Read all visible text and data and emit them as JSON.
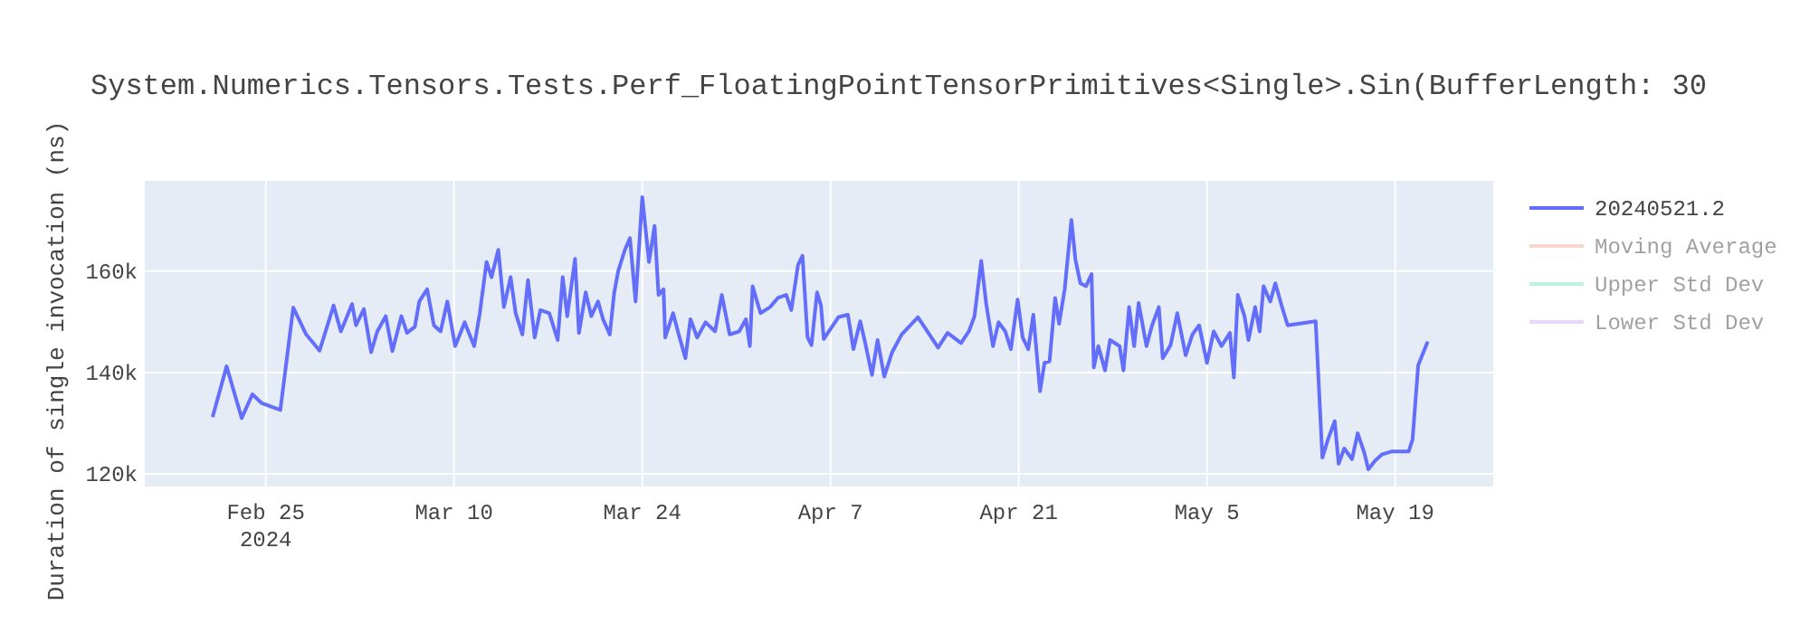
{
  "chart_data": {
    "type": "line",
    "title": "System.Numerics.Tensors.Tests.Perf_FloatingPointTensorPrimitives<Single>.Sin(BufferLength: 30",
    "ylabel": "Duration of single invocation (ns)",
    "xlim": [
      "2024-02-16",
      "2024-05-26T07:00"
    ],
    "xticks": [
      {
        "value": "2024-02-25",
        "label": "Feb 25\n2024"
      },
      {
        "value": "2024-03-10",
        "label": "Mar 10"
      },
      {
        "value": "2024-03-24",
        "label": "Mar 24"
      },
      {
        "value": "2024-04-07",
        "label": "Apr 7"
      },
      {
        "value": "2024-04-21",
        "label": "Apr 21"
      },
      {
        "value": "2024-05-05",
        "label": "May 5"
      },
      {
        "value": "2024-05-19",
        "label": "May 19"
      }
    ],
    "ylim": [
      117500,
      177800
    ],
    "yticks": [
      {
        "value": 120000,
        "label": "120k"
      },
      {
        "value": 140000,
        "label": "140k"
      },
      {
        "value": 160000,
        "label": "160k"
      }
    ],
    "grid": true,
    "legend": "right",
    "marker": "none",
    "line_style": "solid",
    "series": [
      {
        "name": "20240521.2",
        "color": "#636efa",
        "x": [
          "2024-02-21T01:00",
          "2024-02-22T02:00",
          "2024-02-23T05:00",
          "2024-02-24T00:00",
          "2024-02-24T16:00",
          "2024-02-26T02:00",
          "2024-02-27T01:00",
          "2024-02-28T00:00",
          "2024-02-29T00:00",
          "2024-03-01T01:00",
          "2024-03-01T14:00",
          "2024-03-02T10:00",
          "2024-03-02T17:00",
          "2024-03-03T07:00",
          "2024-03-03T20:00",
          "2024-03-04T07:00",
          "2024-03-04T22:00",
          "2024-03-05T10:00",
          "2024-03-06T02:00",
          "2024-03-06T12:00",
          "2024-03-07T02:00",
          "2024-03-07T10:00",
          "2024-03-08T00:00",
          "2024-03-08T12:00",
          "2024-03-09T00:00",
          "2024-03-09T12:00",
          "2024-03-10T02:00",
          "2024-03-10T19:00",
          "2024-03-11T12:00",
          "2024-03-11T22:00",
          "2024-03-12T10:00",
          "2024-03-12T19:00",
          "2024-03-13T07:00",
          "2024-03-13T17:00",
          "2024-03-14T05:00",
          "2024-03-14T14:00",
          "2024-03-15T02:00",
          "2024-03-15T12:00",
          "2024-03-16T00:00",
          "2024-03-16T10:00",
          "2024-03-17T02:00",
          "2024-03-17T17:00",
          "2024-03-18T02:00",
          "2024-03-18T10:00",
          "2024-03-19T00:00",
          "2024-03-19T07:00",
          "2024-03-19T19:00",
          "2024-03-20T05:00",
          "2024-03-20T17:00",
          "2024-03-21T02:00",
          "2024-03-21T14:00",
          "2024-03-21T22:00",
          "2024-03-22T05:00",
          "2024-03-22T17:00",
          "2024-03-23T02:00",
          "2024-03-23T12:00",
          "2024-03-24T00:00",
          "2024-03-24T12:00",
          "2024-03-24T22:00",
          "2024-03-25T05:00",
          "2024-03-25T14:00",
          "2024-03-25T17:00",
          "2024-03-26T07:00",
          "2024-03-26T17:00",
          "2024-03-27T05:00",
          "2024-03-27T14:00",
          "2024-03-28T02:00",
          "2024-03-28T17:00",
          "2024-03-29T10:00",
          "2024-03-29T22:00",
          "2024-03-30T12:00",
          "2024-03-31T05:00",
          "2024-03-31T17:00",
          "2024-04-01T00:00",
          "2024-04-01T05:00",
          "2024-04-01T19:00",
          "2024-04-02T12:00",
          "2024-04-03T02:00",
          "2024-04-03T17:00",
          "2024-04-04T02:00",
          "2024-04-04T14:00",
          "2024-04-04T22:00",
          "2024-04-05T07:00",
          "2024-04-05T14:00",
          "2024-04-06T00:00",
          "2024-04-06T07:00",
          "2024-04-06T12:00",
          "2024-04-07T14:00",
          "2024-04-08T07:00",
          "2024-04-08T17:00",
          "2024-04-09T05:00",
          "2024-04-09T14:00",
          "2024-04-10T02:00",
          "2024-04-10T12:00",
          "2024-04-11T00:00",
          "2024-04-11T14:00",
          "2024-04-12T07:00",
          "2024-04-13T12:00",
          "2024-04-15T00:00",
          "2024-04-15T17:00",
          "2024-04-16T17:00",
          "2024-04-17T07:00",
          "2024-04-17T17:00",
          "2024-04-18T05:00",
          "2024-04-18T14:00",
          "2024-04-19T02:00",
          "2024-04-19T12:00",
          "2024-04-20T00:00",
          "2024-04-20T10:00",
          "2024-04-20T22:00",
          "2024-04-21T07:00",
          "2024-04-21T17:00",
          "2024-04-22T02:00",
          "2024-04-22T14:00",
          "2024-04-22T22:00",
          "2024-04-23T07:00",
          "2024-04-23T17:00",
          "2024-04-24T00:00",
          "2024-04-24T10:00",
          "2024-04-24T22:00",
          "2024-04-25T05:00",
          "2024-04-25T14:00",
          "2024-04-26T00:00",
          "2024-04-26T10:00",
          "2024-04-26T14:00",
          "2024-04-26T22:00",
          "2024-04-27T10:00",
          "2024-04-27T19:00",
          "2024-04-28T12:00",
          "2024-04-28T19:00",
          "2024-04-29T05:00",
          "2024-04-29T14:00",
          "2024-04-29T22:00",
          "2024-04-30T12:00",
          "2024-04-30T22:00",
          "2024-05-01T10:00",
          "2024-05-01T17:00",
          "2024-05-02T07:00",
          "2024-05-02T19:00",
          "2024-05-03T10:00",
          "2024-05-03T22:00",
          "2024-05-04T10:00",
          "2024-05-05T00:00",
          "2024-05-05T12:00",
          "2024-05-06T02:00",
          "2024-05-06T17:00",
          "2024-05-07T00:00",
          "2024-05-07T07:00",
          "2024-05-07T19:00",
          "2024-05-08T02:00",
          "2024-05-08T14:00",
          "2024-05-08T22:00",
          "2024-05-09T05:00",
          "2024-05-09T17:00",
          "2024-05-10T02:00",
          "2024-05-10T14:00",
          "2024-05-11T00:00",
          "2024-05-13T02:00",
          "2024-05-13T14:00",
          "2024-05-14T00:00",
          "2024-05-14T12:00",
          "2024-05-14T19:00",
          "2024-05-15T05:00",
          "2024-05-15T19:00",
          "2024-05-16T05:00",
          "2024-05-16T17:00",
          "2024-05-17T00:00",
          "2024-05-17T12:00",
          "2024-05-18T00:00",
          "2024-05-18T17:00",
          "2024-05-20T00:00",
          "2024-05-20T07:00",
          "2024-05-20T17:00",
          "2024-05-21T10:00"
        ],
        "values": [
          131200,
          141200,
          131000,
          135700,
          134000,
          132600,
          152800,
          147500,
          144300,
          153200,
          148100,
          153500,
          149300,
          152500,
          144000,
          148100,
          151100,
          144200,
          151100,
          147800,
          149000,
          154000,
          156400,
          149300,
          148100,
          154000,
          145200,
          149900,
          145200,
          151700,
          161800,
          158800,
          164200,
          152900,
          158800,
          151700,
          147500,
          158200,
          146900,
          152300,
          151700,
          146400,
          158800,
          151100,
          162400,
          147800,
          155800,
          151100,
          154000,
          150500,
          147500,
          155800,
          160000,
          164200,
          166500,
          154000,
          174600,
          161800,
          168900,
          155300,
          156400,
          146900,
          151700,
          147500,
          142800,
          150500,
          146900,
          149900,
          148100,
          155300,
          147500,
          148100,
          150500,
          145200,
          157000,
          151700,
          152900,
          154700,
          155300,
          152300,
          161200,
          163000,
          146900,
          145400,
          155800,
          153200,
          146600,
          150900,
          151400,
          144600,
          150100,
          145800,
          139500,
          146400,
          139200,
          144000,
          147500,
          150900,
          144900,
          147800,
          145800,
          148100,
          151100,
          162000,
          153500,
          145200,
          149900,
          148100,
          144600,
          154400,
          146900,
          144600,
          151400,
          136300,
          141900,
          142200,
          154700,
          149600,
          156400,
          170100,
          162400,
          157600,
          157000,
          159400,
          141000,
          145200,
          140400,
          146400,
          145200,
          140400,
          152900,
          145200,
          153700,
          145200,
          149300,
          152900,
          142800,
          145400,
          151700,
          143400,
          147500,
          149300,
          141900,
          148100,
          145200,
          147800,
          139000,
          155300,
          151100,
          146400,
          152900,
          148100,
          157000,
          154000,
          157600,
          152900,
          149300,
          150100,
          123200,
          126800,
          130400,
          122000,
          125000,
          122900,
          128000,
          124100,
          120900,
          122600,
          123800,
          124400,
          124400,
          126800,
          141400,
          146100
        ]
      },
      {
        "name": "Moving Average",
        "color": "#f7aa9d"
      },
      {
        "name": "Upper Std Dev",
        "color": "#80e5cb"
      },
      {
        "name": "Lower Std Dev",
        "color": "#d5b1fc"
      }
    ]
  }
}
